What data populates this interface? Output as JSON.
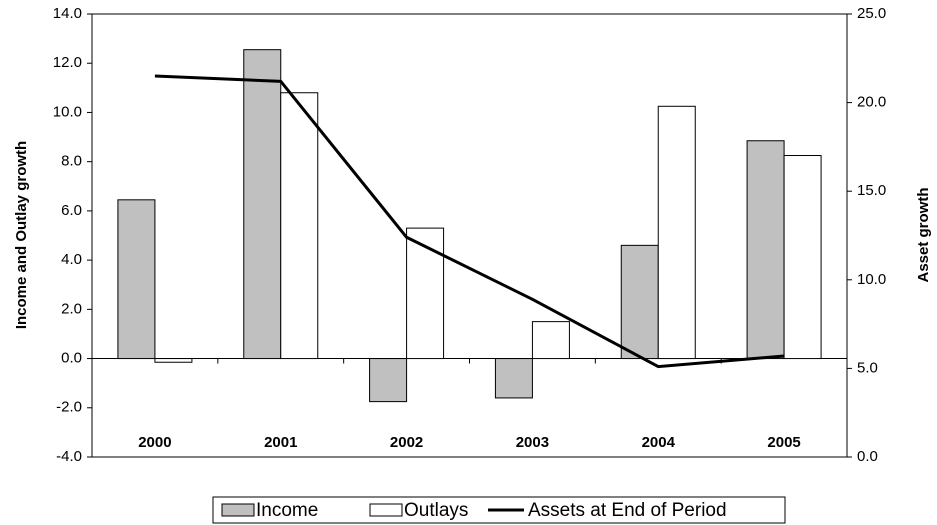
{
  "chart_data": {
    "type": "bar",
    "categories": [
      "2000",
      "2001",
      "2002",
      "2003",
      "2004",
      "2005"
    ],
    "series": [
      {
        "name": "Income",
        "color": "#c0c0c0",
        "values": [
          6.45,
          12.55,
          -1.75,
          -1.6,
          4.6,
          8.85
        ]
      },
      {
        "name": "Outlays",
        "color": "#ffffff",
        "values": [
          -0.15,
          10.8,
          5.3,
          1.5,
          10.25,
          8.25
        ]
      },
      {
        "name": "Assets at End of Period",
        "color": "#000000",
        "type": "line",
        "axis": "y2",
        "values": [
          21.5,
          21.2,
          12.4,
          8.9,
          5.1,
          5.7
        ]
      }
    ],
    "ylabel": "Income and Outlay growth",
    "y2label": "Asset growth",
    "ylim": [
      -4,
      14
    ],
    "yticks": [
      {
        "value": -4,
        "label": "-4.0"
      },
      {
        "value": -2,
        "label": "-2.0"
      },
      {
        "value": 0,
        "label": "0.0"
      },
      {
        "value": 2,
        "label": "2.0"
      },
      {
        "value": 4,
        "label": "4.0"
      },
      {
        "value": 6,
        "label": "6.0"
      },
      {
        "value": 8,
        "label": "8.0"
      },
      {
        "value": 10,
        "label": "10.0"
      },
      {
        "value": 12,
        "label": "12.0"
      },
      {
        "value": 14,
        "label": "14.0"
      }
    ],
    "y2lim": [
      0,
      25
    ],
    "y2ticks": [
      {
        "value": 0,
        "label": "0.0"
      },
      {
        "value": 5,
        "label": "5.0"
      },
      {
        "value": 10,
        "label": "10.0"
      },
      {
        "value": 15,
        "label": "15.0"
      },
      {
        "value": 20,
        "label": "20.0"
      },
      {
        "value": 25,
        "label": "25.0"
      }
    ],
    "grid": false,
    "legend": "bottom"
  }
}
